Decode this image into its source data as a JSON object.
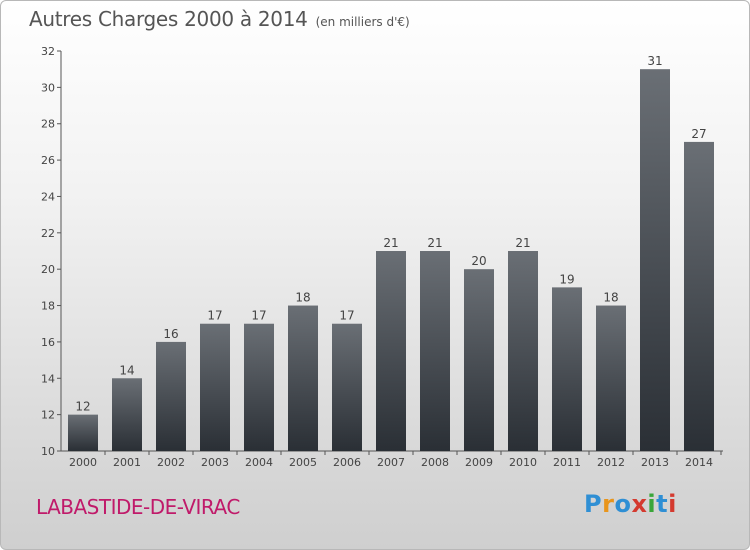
{
  "header": {
    "title": "Autres Charges 2000 à 2014",
    "subtitle": "(en milliers d'€)"
  },
  "footer": {
    "commune": "LABASTIDE-DE-VIRAC",
    "logo_text": "Proxiti"
  },
  "colors": {
    "bar_top": "#6a6f75",
    "bar_bottom": "#2a2f35",
    "title": "#555555",
    "commune": "#c01a6a"
  },
  "chart_data": {
    "type": "bar",
    "title": "Autres Charges 2000 à 2014",
    "subtitle": "(en milliers d'€)",
    "categories": [
      "2000",
      "2001",
      "2002",
      "2003",
      "2004",
      "2005",
      "2006",
      "2007",
      "2008",
      "2009",
      "2010",
      "2011",
      "2012",
      "2013",
      "2014"
    ],
    "values": [
      12,
      14,
      16,
      17,
      17,
      18,
      17,
      21,
      21,
      20,
      21,
      19,
      18,
      31,
      27
    ],
    "ylim": [
      10,
      32
    ],
    "yticks": [
      10,
      12,
      14,
      16,
      18,
      20,
      22,
      24,
      26,
      28,
      30,
      32
    ],
    "xlabel": "",
    "ylabel": "",
    "grid": false,
    "data_labels": true
  }
}
